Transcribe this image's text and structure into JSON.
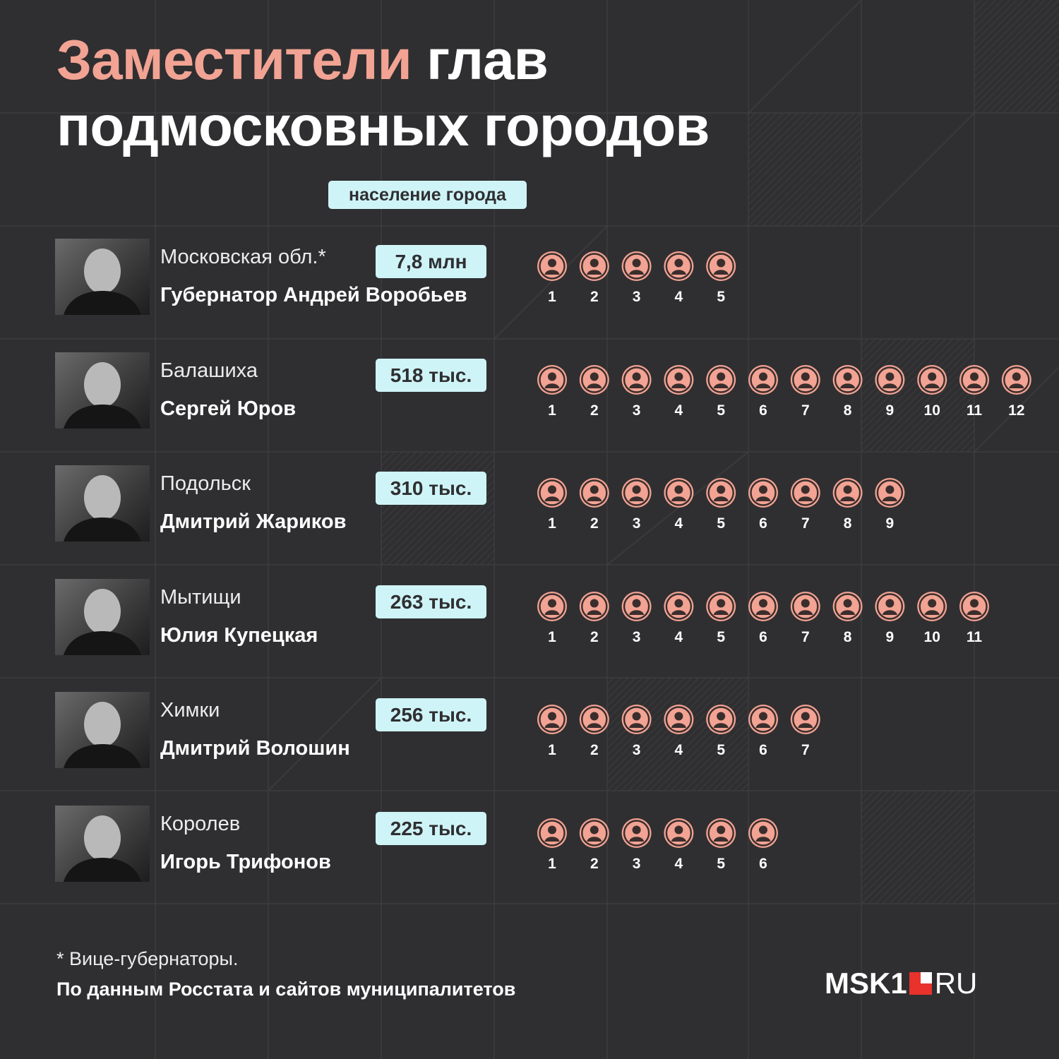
{
  "title": {
    "accent": "Заместители",
    "rest_line1": " глав",
    "line2": "подмосковных городов"
  },
  "legend": {
    "population_label": "население города"
  },
  "chart_data": {
    "type": "pictogram",
    "icon": "person-circle-icon",
    "icon_color": "#f2a393",
    "badge_color": "#cff4f8",
    "categories": [
      "Московская обл.*",
      "Балашиха",
      "Подольск",
      "Мытищи",
      "Химки",
      "Королев"
    ],
    "rows": [
      {
        "city": "Московская обл.*",
        "person": "Губернатор Андрей Воробьев",
        "population": "7,8 млн",
        "deputies": 5
      },
      {
        "city": "Балашиха",
        "person": "Сергей Юров",
        "population": "518 тыс.",
        "deputies": 12
      },
      {
        "city": "Подольск",
        "person": "Дмитрий Жариков",
        "population": "310 тыс.",
        "deputies": 9
      },
      {
        "city": "Мытищи",
        "person": "Юлия Купецкая",
        "population": "263 тыс.",
        "deputies": 11
      },
      {
        "city": "Химки",
        "person": "Дмитрий Волошин",
        "population": "256 тыс.",
        "deputies": 7
      },
      {
        "city": "Королев",
        "person": "Игорь Трифонов",
        "population": "225 тыс.",
        "deputies": 6
      }
    ]
  },
  "footnote": "* Вице-губернаторы.",
  "source": "По данным Росстата и сайтов муниципалитетов",
  "logo": {
    "main": "MSK1",
    "suffix": "RU"
  }
}
